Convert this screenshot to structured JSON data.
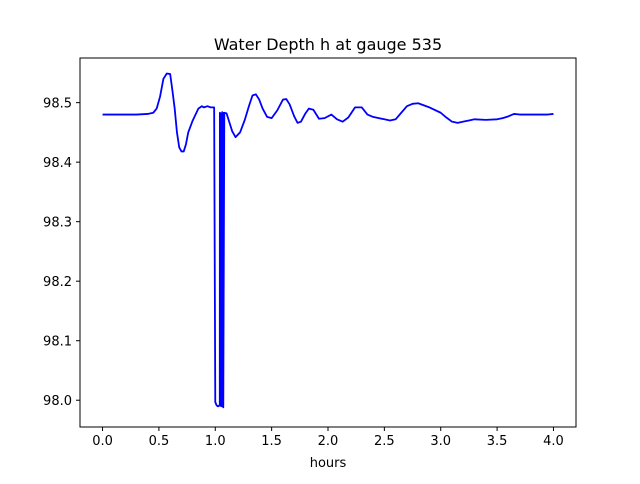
{
  "chart_data": {
    "type": "line",
    "title": "Water Depth h at gauge 535",
    "xlabel": "hours",
    "ylabel": "",
    "xlim": [
      -0.2,
      4.2
    ],
    "ylim": [
      97.955,
      98.575
    ],
    "xticks": [
      0.0,
      0.5,
      1.0,
      1.5,
      2.0,
      2.5,
      3.0,
      3.5,
      4.0
    ],
    "xtick_labels": [
      "0.0",
      "0.5",
      "1.0",
      "1.5",
      "2.0",
      "2.5",
      "3.0",
      "3.5",
      "4.0"
    ],
    "yticks": [
      98.0,
      98.1,
      98.2,
      98.3,
      98.4,
      98.5
    ],
    "ytick_labels": [
      "98.0",
      "98.1",
      "98.2",
      "98.3",
      "98.4",
      "98.5"
    ],
    "grid": false,
    "series": [
      {
        "color": "#0000ff",
        "x": [
          0.0,
          0.2,
          0.3,
          0.4,
          0.45,
          0.48,
          0.51,
          0.54,
          0.57,
          0.6,
          0.62,
          0.64,
          0.66,
          0.68,
          0.7,
          0.72,
          0.74,
          0.76,
          0.8,
          0.85,
          0.88,
          0.9,
          0.93,
          0.96,
          0.99,
          1.0,
          1.01,
          1.02,
          1.03,
          1.04,
          1.041,
          1.045,
          1.05,
          1.051,
          1.06,
          1.061,
          1.065,
          1.07,
          1.071,
          1.08,
          1.1,
          1.12,
          1.15,
          1.18,
          1.22,
          1.26,
          1.3,
          1.33,
          1.36,
          1.39,
          1.42,
          1.46,
          1.5,
          1.55,
          1.6,
          1.63,
          1.66,
          1.7,
          1.73,
          1.76,
          1.8,
          1.83,
          1.87,
          1.92,
          1.97,
          2.03,
          2.08,
          2.13,
          2.18,
          2.24,
          2.3,
          2.35,
          2.4,
          2.45,
          2.5,
          2.55,
          2.6,
          2.65,
          2.7,
          2.75,
          2.8,
          2.9,
          3.0,
          3.05,
          3.1,
          3.15,
          3.2,
          3.25,
          3.3,
          3.4,
          3.5,
          3.55,
          3.6,
          3.65,
          3.7,
          3.8,
          3.9,
          3.95,
          4.0
        ],
        "y": [
          98.48,
          98.48,
          98.48,
          98.481,
          98.483,
          98.49,
          98.51,
          98.54,
          98.549,
          98.548,
          98.52,
          98.49,
          98.45,
          98.425,
          98.418,
          98.418,
          98.43,
          98.45,
          98.47,
          98.49,
          98.494,
          98.492,
          98.494,
          98.492,
          98.492,
          97.997,
          97.992,
          97.99,
          97.99,
          97.992,
          98.483,
          98.482,
          98.48,
          97.99,
          97.99,
          98.484,
          98.483,
          98.483,
          97.988,
          98.483,
          98.482,
          98.47,
          98.452,
          98.442,
          98.45,
          98.47,
          98.495,
          98.512,
          98.514,
          98.505,
          98.49,
          98.476,
          98.474,
          98.487,
          98.505,
          98.506,
          98.497,
          98.477,
          98.466,
          98.468,
          98.482,
          98.49,
          98.488,
          98.473,
          98.474,
          98.48,
          98.472,
          98.468,
          98.475,
          98.492,
          98.492,
          98.48,
          98.476,
          98.474,
          98.472,
          98.47,
          98.472,
          98.483,
          98.494,
          98.498,
          98.499,
          98.492,
          98.483,
          98.475,
          98.468,
          98.466,
          98.468,
          98.47,
          98.472,
          98.471,
          98.472,
          98.474,
          98.477,
          98.481,
          98.48,
          98.48,
          98.48,
          98.48,
          98.481
        ]
      }
    ]
  }
}
